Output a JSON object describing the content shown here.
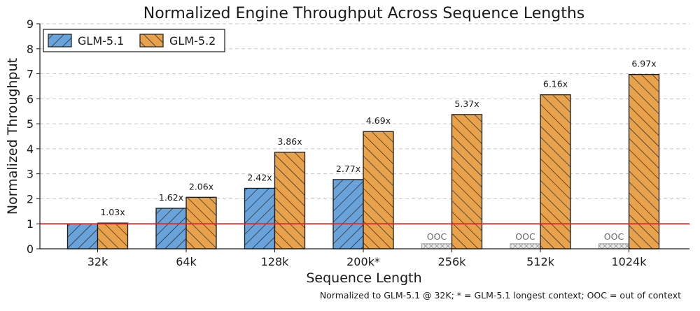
{
  "chart_data": {
    "type": "bar",
    "title": "Normalized Engine Throughput Across Sequence Lengths",
    "xlabel": "Sequence Length",
    "ylabel": "Normalized Throughput",
    "ylim": [
      0,
      9
    ],
    "yticks": [
      0,
      1,
      2,
      3,
      4,
      5,
      6,
      7,
      8,
      9
    ],
    "grid": "horizontal dashed",
    "legend_position": "top-left",
    "categories": [
      "32k",
      "64k",
      "128k",
      "200k*",
      "256k",
      "512k",
      "1024k"
    ],
    "series": [
      {
        "name": "GLM-5.1",
        "color": "#6aa3d9",
        "hatch": "forward-diagonal",
        "values": [
          1.0,
          1.62,
          2.42,
          2.77,
          null,
          null,
          null
        ],
        "labels": [
          "",
          "1.62x",
          "2.42x",
          "2.77x",
          "OOC",
          "OOC",
          "OOC"
        ]
      },
      {
        "name": "GLM-5.2",
        "color": "#e8a24c",
        "hatch": "back-diagonal",
        "values": [
          1.03,
          2.06,
          3.86,
          4.69,
          5.37,
          6.16,
          6.97
        ],
        "labels": [
          "1.03x",
          "2.06x",
          "3.86x",
          "4.69x",
          "5.37x",
          "6.16x",
          "6.97x"
        ]
      }
    ],
    "reference_line": {
      "y": 1,
      "color": "#d62728"
    },
    "ooc_placeholder_value": 0.2,
    "footnote": "Normalized to GLM-5.1 @ 32K; * = GLM-5.1 longest context; OOC = out of context"
  }
}
